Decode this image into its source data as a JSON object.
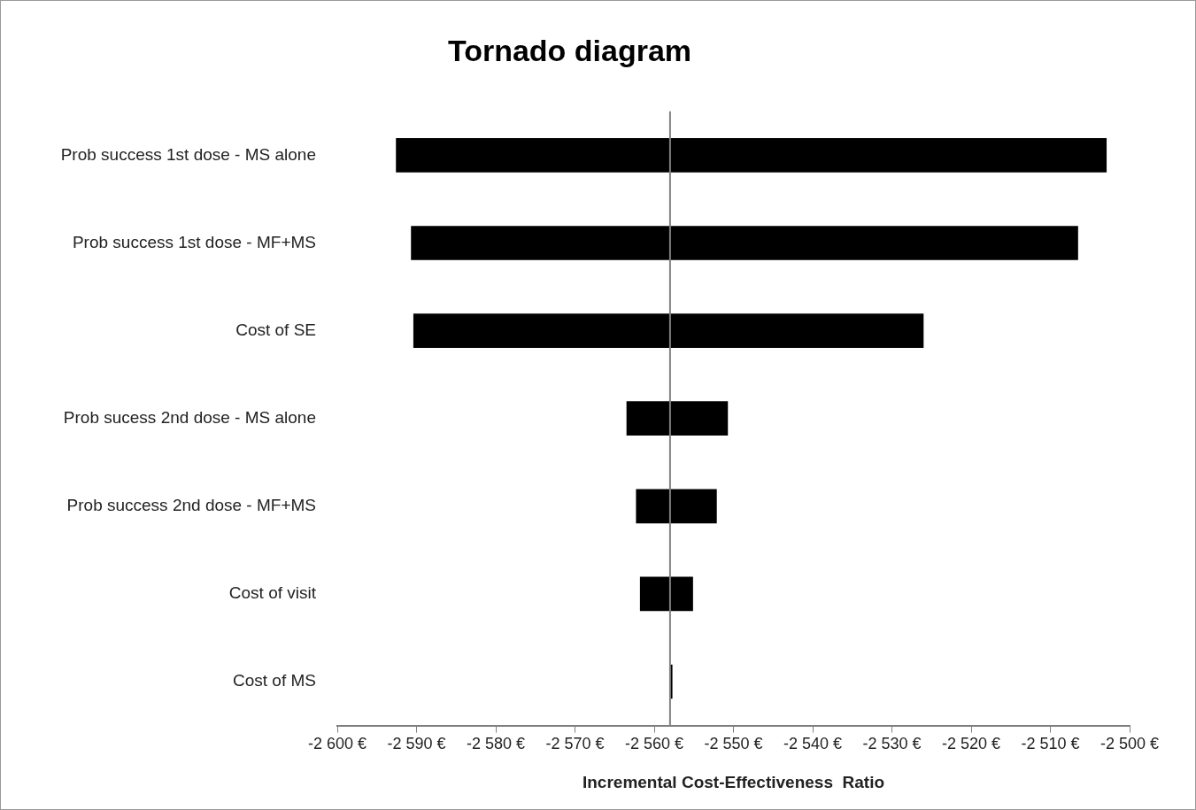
{
  "chart_data": {
    "type": "bar",
    "orientation": "horizontal",
    "title": "Tornado diagram",
    "xlabel": "Incremental Cost-Effectiveness  Ratio",
    "categories": [
      "Prob success 1st dose - MS alone",
      "Prob success 1st dose - MF+MS",
      "Cost of SE",
      "Prob sucess 2nd dose - MS alone",
      "Prob success 2nd dose - MF+MS",
      "Cost of visit",
      "Cost of MS"
    ],
    "base": [
      -2592.6,
      -2590.7,
      -2590.4,
      -2563.5,
      -2562.3,
      -2561.8,
      -2558
    ],
    "values": [
      89.7,
      84.2,
      64.4,
      12.8,
      10.2,
      6.7,
      0.3
    ],
    "color": "#000000",
    "xlim": [
      -2600,
      -2500
    ],
    "xticks": [
      {
        "value": -2600,
        "label": "-2 600 €"
      },
      {
        "value": -2590,
        "label": "-2 590 €"
      },
      {
        "value": -2580,
        "label": "-2 580 €"
      },
      {
        "value": -2570,
        "label": "-2 570 €"
      },
      {
        "value": -2560,
        "label": "-2 560 €"
      },
      {
        "value": -2550,
        "label": "-2 550 €"
      },
      {
        "value": -2540,
        "label": "-2 540 €"
      },
      {
        "value": -2530,
        "label": "-2 530 €"
      },
      {
        "value": -2520,
        "label": "-2 520 €"
      },
      {
        "value": -2510,
        "label": "-2 510 €"
      },
      {
        "value": -2500,
        "label": "-2 500 €"
      }
    ],
    "ref_lines": [
      {
        "axis": "x",
        "value": -2558,
        "color": "#808080"
      }
    ],
    "grid": false,
    "legend": false
  }
}
